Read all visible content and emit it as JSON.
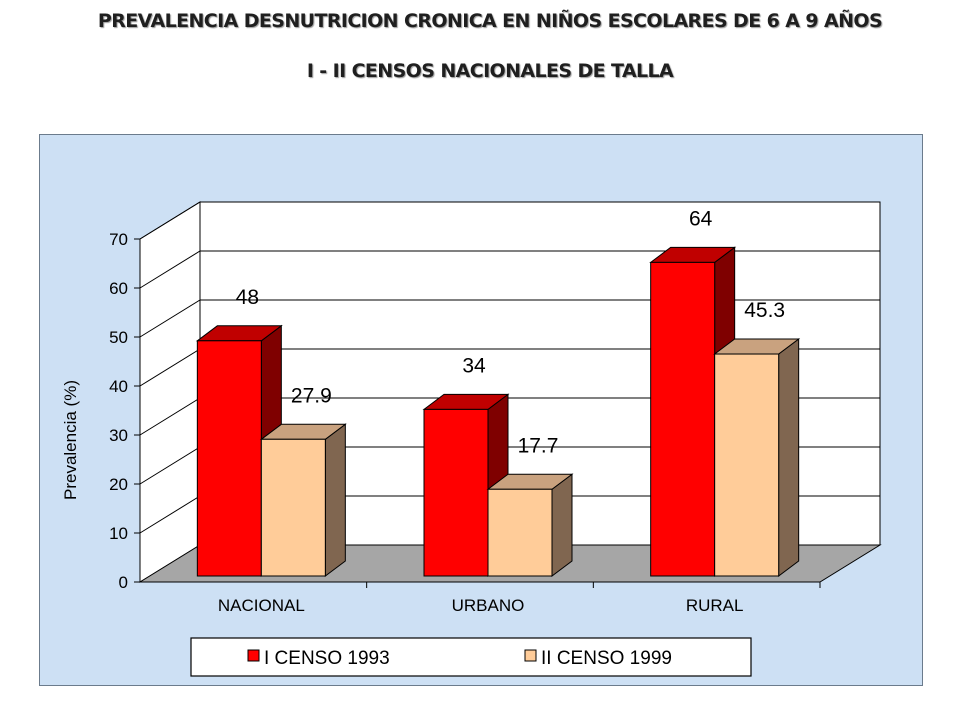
{
  "title_line1": "PREVALENCIA  DESNUTRICION CRONICA EN NIÑOS ESCOLARES DE 6 A 9 AÑOS",
  "title_line2": "I - II CENSOS  NACIONALES  DE TALLA",
  "chart_data": {
    "type": "bar",
    "title": "PREVALENCIA  DESNUTRICION CRONICA EN NIÑOS ESCOLARES DE 6 A 9 AÑOS",
    "subtitle": "I - II CENSOS  NACIONALES  DE TALLA",
    "categories": [
      "NACIONAL",
      "URBANO",
      "RURAL"
    ],
    "series": [
      {
        "name": "I CENSO 1993",
        "values": [
          48,
          34,
          64
        ],
        "labels": [
          "48",
          "34",
          "64"
        ],
        "color": "#ff0000",
        "side_color": "#7f0000",
        "top_color": "#c00000"
      },
      {
        "name": "II CENSO 1999",
        "values": [
          27.9,
          17.7,
          45.3
        ],
        "labels": [
          "27.9",
          "17.7",
          "45.3"
        ],
        "color": "#ffcc99",
        "side_color": "#806650",
        "top_color": "#c9a27f"
      }
    ],
    "xlabel": "",
    "ylabel": "Prevalencia (%)",
    "ylim": [
      0,
      70
    ],
    "yticks": [
      0,
      10,
      20,
      30,
      40,
      50,
      60,
      70
    ],
    "grid": true,
    "legend": "bottom",
    "background": "#cde0f4"
  }
}
